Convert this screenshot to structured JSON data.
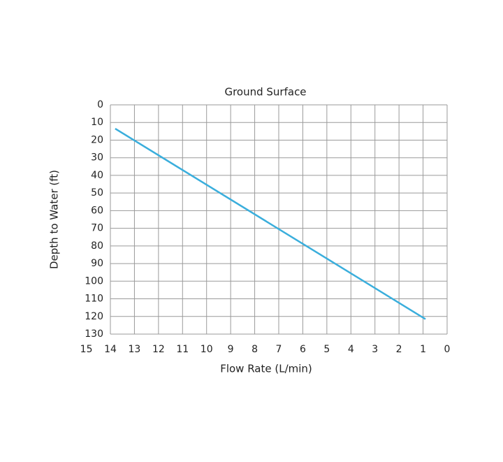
{
  "chart_data": {
    "type": "line",
    "title": "Ground Surface",
    "x_label": "Flow Rate (L/min)",
    "y_label": "Depth to Water (ft)",
    "x": [
      13.8,
      0.9
    ],
    "series": [
      {
        "color": "#3aaedc",
        "values": [
          13.5,
          121.5
        ]
      }
    ],
    "xlim": [
      14,
      0
    ],
    "xticks": [
      15,
      14,
      13,
      12,
      11,
      10,
      9,
      8,
      7,
      6,
      5,
      4,
      3,
      2,
      1,
      0
    ],
    "ylim": [
      0,
      130
    ],
    "yticks": [
      0,
      10,
      20,
      30,
      40,
      50,
      60,
      70,
      80,
      90,
      100,
      110,
      120,
      130
    ],
    "grid": true
  }
}
